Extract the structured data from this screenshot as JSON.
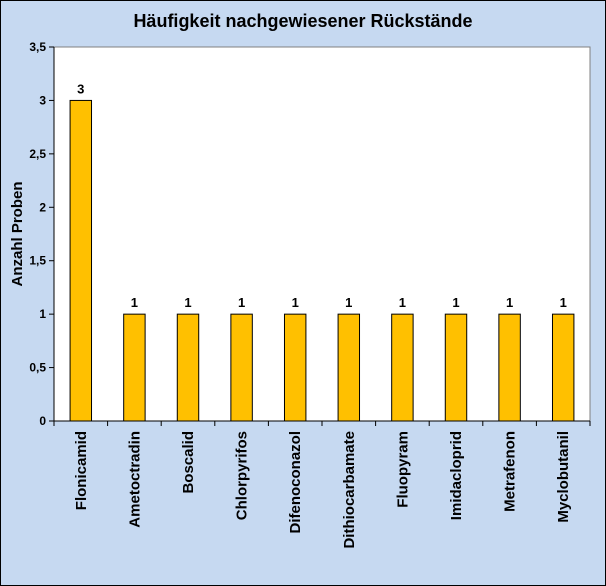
{
  "chart_data": {
    "type": "bar",
    "title": "Häufigkeit nachgewiesener Rückstände",
    "xlabel": "",
    "ylabel": "Anzahl Proben",
    "categories": [
      "Flonicamid",
      "Ametoctradin",
      "Boscalid",
      "Chlorpyrifos",
      "Difenoconazol",
      "Dithiocarbamate",
      "Fluopyram",
      "Imidacloprid",
      "Metrafenon",
      "Myclobutanil"
    ],
    "values": [
      3,
      1,
      1,
      1,
      1,
      1,
      1,
      1,
      1,
      1
    ],
    "data_labels": [
      "3",
      "1",
      "1",
      "1",
      "1",
      "1",
      "1",
      "1",
      "1",
      "1"
    ],
    "ylim": [
      0,
      3.5
    ],
    "y_ticks": [
      0,
      0.5,
      1,
      1.5,
      2,
      2.5,
      3,
      3.5
    ],
    "y_tick_labels": [
      "0",
      "0,5",
      "1",
      "1,5",
      "2",
      "2,5",
      "3",
      "3,5"
    ],
    "grid": false,
    "legend": "none",
    "colors": {
      "background": "#c6d9f1",
      "plot_area": "#ffffff",
      "bar_fill": "#ffc000",
      "bar_stroke": "#000000"
    }
  }
}
